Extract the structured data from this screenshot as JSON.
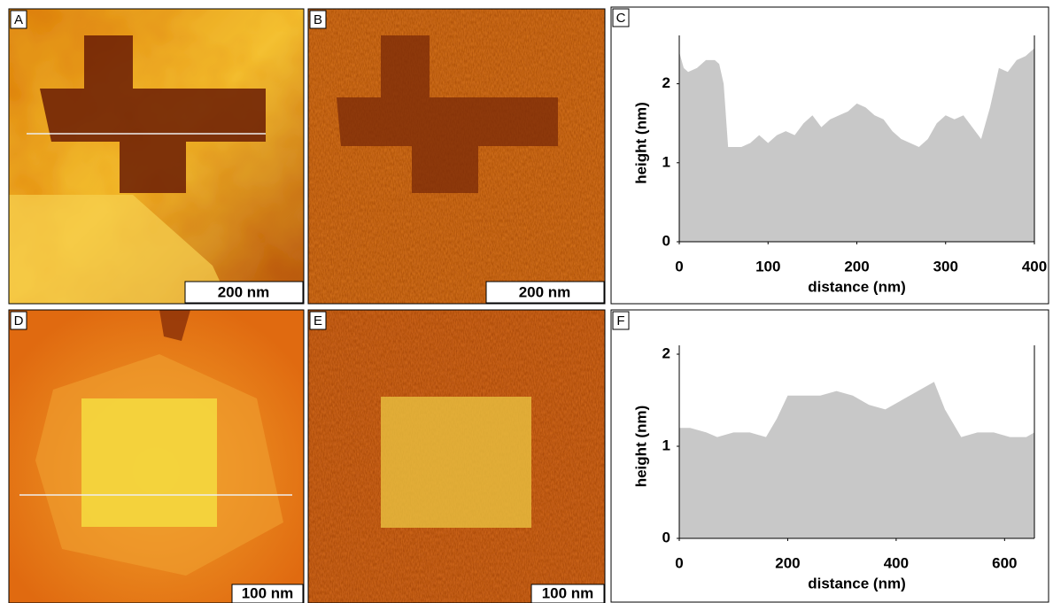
{
  "panels": [
    {
      "label": "A",
      "scale_bar": "200 nm"
    },
    {
      "label": "B",
      "scale_bar": "200 nm"
    },
    {
      "label": "D",
      "scale_bar": "100 nm"
    },
    {
      "label": "E",
      "scale_bar": "100 nm"
    }
  ],
  "chart_data": [
    {
      "type": "area",
      "label": "C",
      "x_label": "distance (nm)",
      "y_label": "height (nm)",
      "color": "#c8c8c8",
      "x": [
        0,
        5,
        10,
        20,
        30,
        40,
        45,
        50,
        55,
        60,
        70,
        80,
        90,
        100,
        110,
        120,
        130,
        140,
        150,
        160,
        170,
        180,
        190,
        200,
        210,
        220,
        230,
        240,
        250,
        260,
        270,
        280,
        290,
        300,
        310,
        320,
        330,
        340,
        350,
        360,
        370,
        380,
        390,
        400
      ],
      "values": [
        2.4,
        2.2,
        2.15,
        2.2,
        2.3,
        2.3,
        2.25,
        2.0,
        1.2,
        1.2,
        1.2,
        1.25,
        1.35,
        1.25,
        1.35,
        1.4,
        1.35,
        1.5,
        1.6,
        1.45,
        1.55,
        1.6,
        1.65,
        1.75,
        1.7,
        1.6,
        1.55,
        1.4,
        1.3,
        1.25,
        1.2,
        1.3,
        1.5,
        1.6,
        1.55,
        1.6,
        1.45,
        1.3,
        1.7,
        2.2,
        2.15,
        2.3,
        2.35,
        2.45
      ],
      "xlim": [
        0,
        400
      ],
      "ylim": [
        0,
        2.5
      ],
      "xticks": [
        0,
        100,
        200,
        300,
        400
      ],
      "yticks": [
        0,
        1,
        2
      ]
    },
    {
      "type": "area",
      "label": "F",
      "x_label": "distance (nm)",
      "y_label": "height (nm)",
      "color": "#c8c8c8",
      "x": [
        0,
        20,
        50,
        70,
        100,
        130,
        160,
        180,
        200,
        230,
        260,
        290,
        320,
        350,
        380,
        410,
        440,
        470,
        490,
        520,
        550,
        580,
        610,
        640,
        655
      ],
      "values": [
        1.2,
        1.2,
        1.15,
        1.1,
        1.15,
        1.15,
        1.1,
        1.3,
        1.55,
        1.55,
        1.55,
        1.6,
        1.55,
        1.45,
        1.4,
        1.5,
        1.6,
        1.7,
        1.4,
        1.1,
        1.15,
        1.15,
        1.1,
        1.1,
        1.15
      ],
      "xlim": [
        0,
        655
      ],
      "ylim": [
        0,
        2
      ],
      "xticks": [
        0,
        200,
        400,
        600
      ],
      "yticks": [
        0,
        1,
        2
      ]
    }
  ]
}
